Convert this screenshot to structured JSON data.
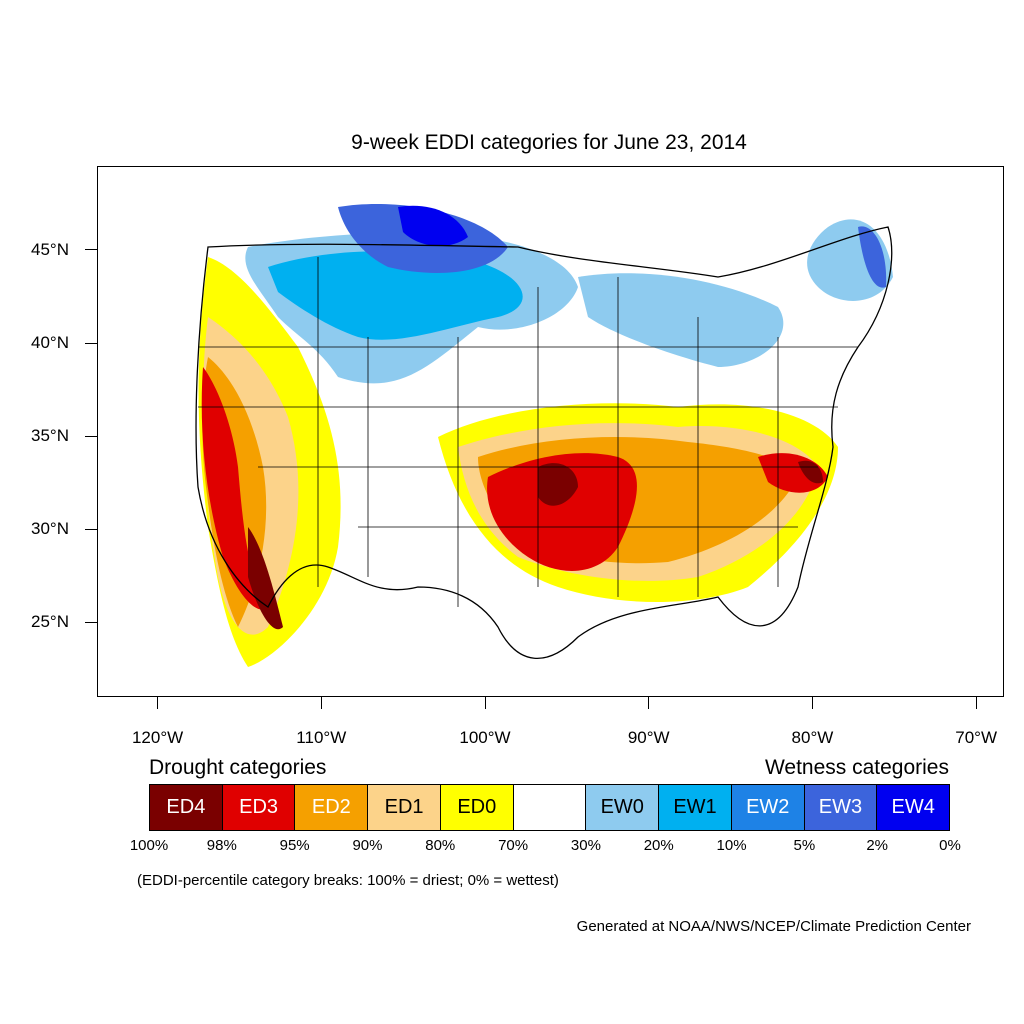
{
  "title": "9-week EDDI categories for June 23, 2014",
  "map": {
    "lat_axis": {
      "range": [
        21,
        49.5
      ],
      "ticks": [
        {
          "value": 45,
          "label": "45°N"
        },
        {
          "value": 40,
          "label": "40°N"
        },
        {
          "value": 35,
          "label": "35°N"
        },
        {
          "value": 30,
          "label": "30°N"
        },
        {
          "value": 25,
          "label": "25°N"
        }
      ]
    },
    "lon_axis": {
      "range": [
        -123.7,
        -68.3
      ],
      "ticks": [
        {
          "value": -120,
          "label": "120°W"
        },
        {
          "value": -110,
          "label": "110°W"
        },
        {
          "value": -100,
          "label": "100°W"
        },
        {
          "value": -90,
          "label": "90°W"
        },
        {
          "value": -80,
          "label": "80°W"
        },
        {
          "value": -70,
          "label": "70°W"
        }
      ]
    }
  },
  "legend": {
    "drought_heading": "Drought categories",
    "wetness_heading": "Wetness categories",
    "categories": [
      {
        "label": "ED4",
        "color": "#7a0000",
        "text_color": "#ffffff"
      },
      {
        "label": "ED3",
        "color": "#e00000",
        "text_color": "#ffffff"
      },
      {
        "label": "ED2",
        "color": "#f5a000",
        "text_color": "#ffffff"
      },
      {
        "label": "ED1",
        "color": "#fcd38a",
        "text_color": "#000000"
      },
      {
        "label": "ED0",
        "color": "#ffff00",
        "text_color": "#000000"
      },
      {
        "label": "",
        "color": "#ffffff",
        "text_color": "#000000"
      },
      {
        "label": "EW0",
        "color": "#8ecbef",
        "text_color": "#000000"
      },
      {
        "label": "EW1",
        "color": "#00b0f0",
        "text_color": "#000000"
      },
      {
        "label": "EW2",
        "color": "#1e82e6",
        "text_color": "#ffffff"
      },
      {
        "label": "EW3",
        "color": "#3c64dc",
        "text_color": "#ffffff"
      },
      {
        "label": "EW4",
        "color": "#0000f0",
        "text_color": "#ffffff"
      }
    ],
    "percentiles": [
      "100%",
      "98%",
      "95%",
      "90%",
      "80%",
      "70%",
      "30%",
      "20%",
      "10%",
      "5%",
      "2%",
      "0%"
    ]
  },
  "note": "(EDDI-percentile category breaks: 100% = driest; 0% = wettest)",
  "credit": "Generated at NOAA/NWS/NCEP/Climate Prediction Center"
}
